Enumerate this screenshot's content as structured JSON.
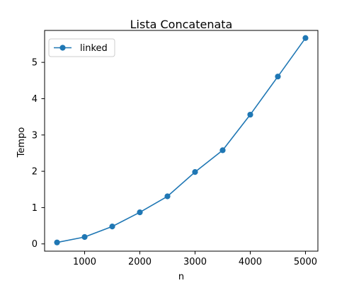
{
  "chart_data": {
    "type": "line",
    "title": "Lista Concatenata",
    "xlabel": "n",
    "ylabel": "Tempo",
    "x": [
      500,
      1000,
      1500,
      2000,
      2500,
      3000,
      3500,
      4000,
      4500,
      5000
    ],
    "series": [
      {
        "name": "linked",
        "values": [
          0.04,
          0.19,
          0.48,
          0.87,
          1.31,
          1.98,
          2.58,
          3.56,
          4.61,
          5.67
        ],
        "color": "#1f77b4",
        "marker": "circle"
      }
    ],
    "xlim": [
      275,
      5225
    ],
    "ylim": [
      -0.2,
      5.88
    ],
    "xticks": [
      1000,
      2000,
      3000,
      4000,
      5000
    ],
    "yticks": [
      0,
      1,
      2,
      3,
      4,
      5
    ],
    "grid": false,
    "legend": "top-left"
  }
}
